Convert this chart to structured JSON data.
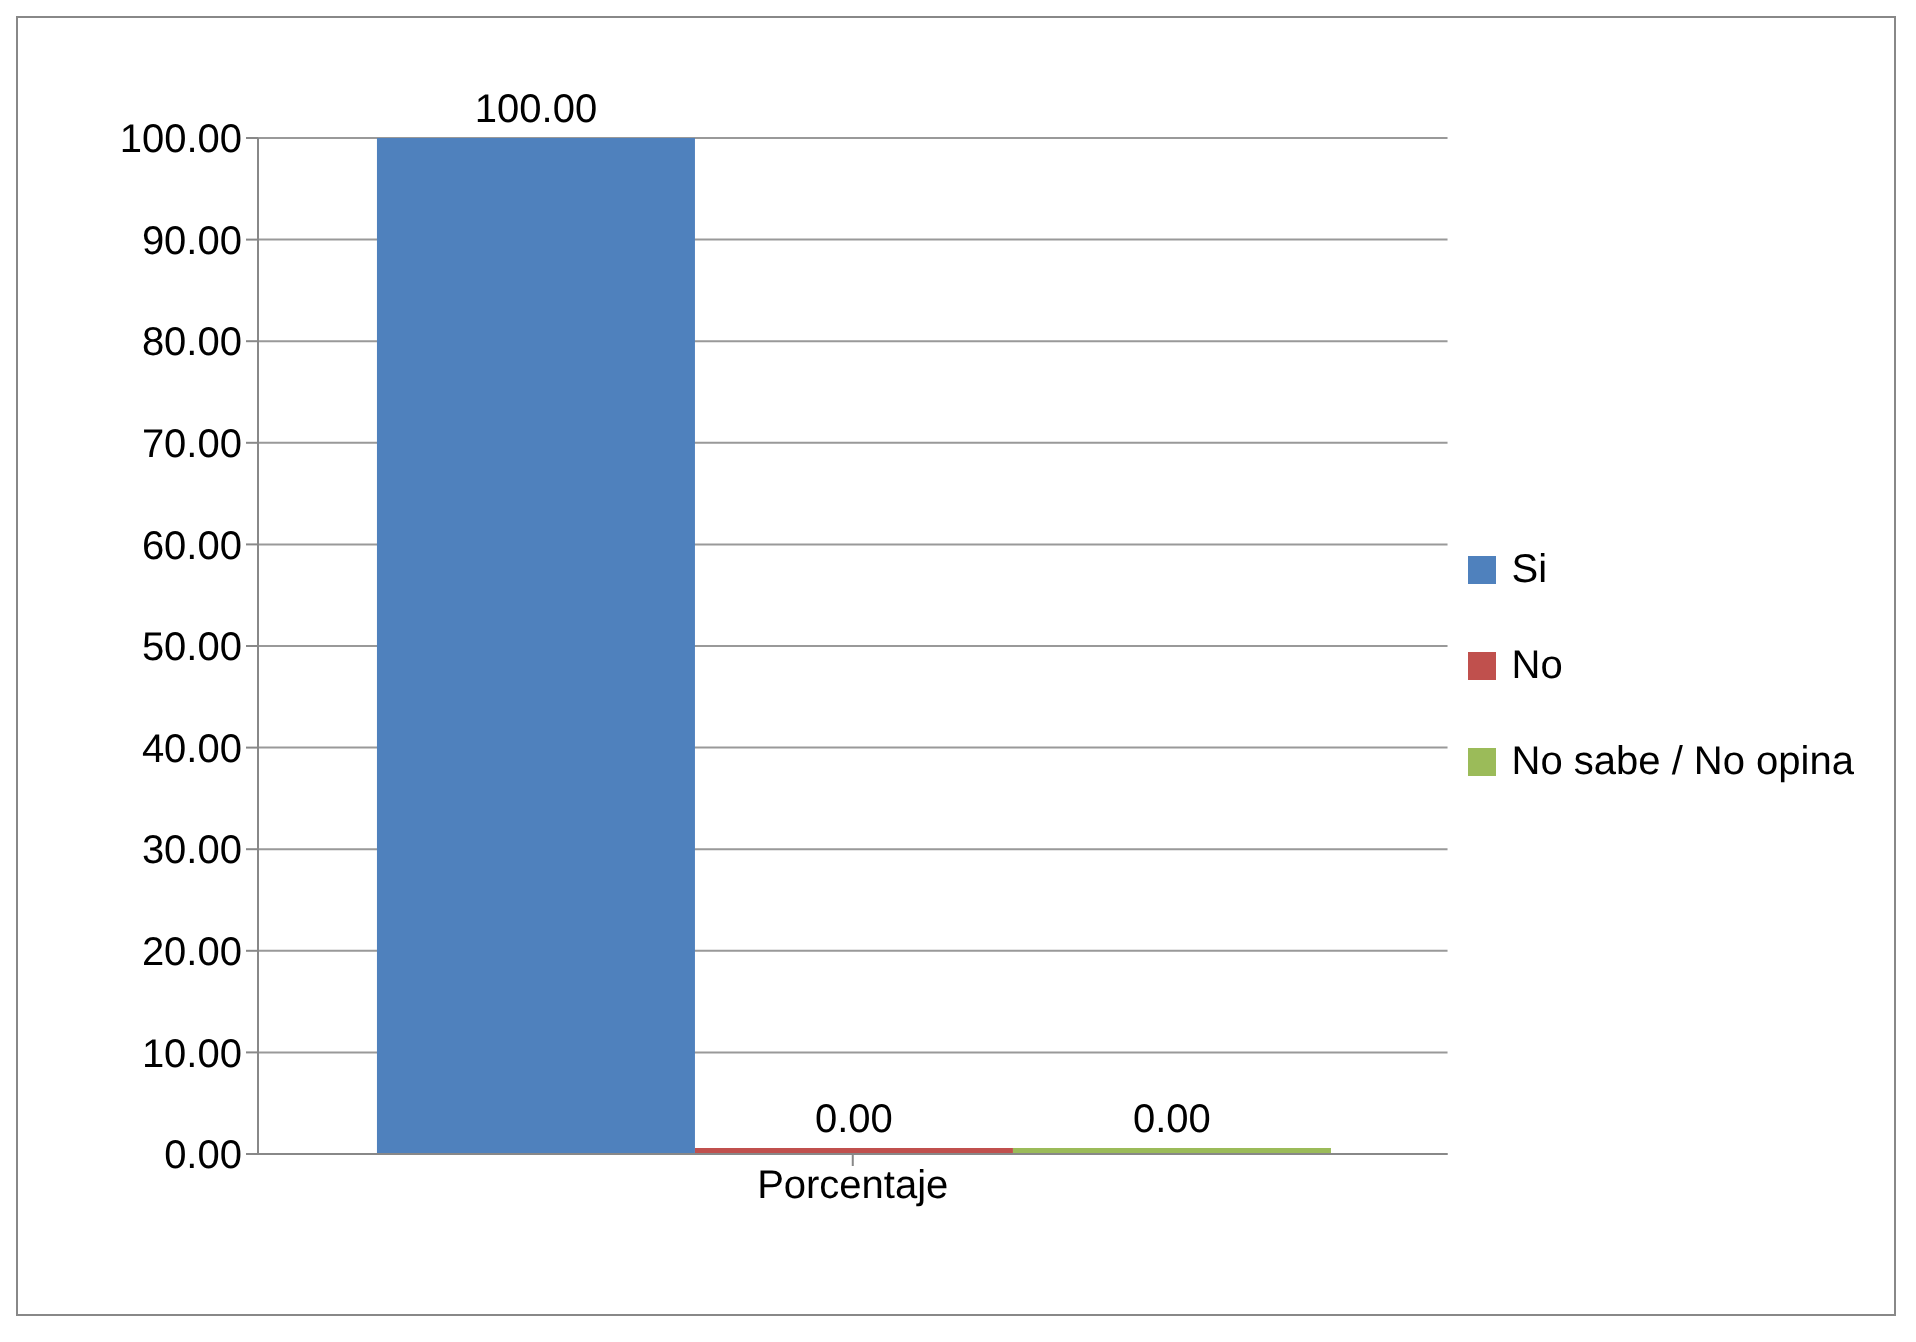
{
  "chart_data": {
    "type": "bar",
    "categories": [
      "Porcentaje"
    ],
    "series": [
      {
        "name": "Si",
        "color": "#4f81bd",
        "values": [
          100
        ],
        "value_labels": [
          "100.00"
        ]
      },
      {
        "name": "No",
        "color": "#c0504d",
        "values": [
          0
        ],
        "value_labels": [
          "0.00"
        ]
      },
      {
        "name": "No sabe / No opina",
        "color": "#9bbb59",
        "values": [
          0
        ],
        "value_labels": [
          "0.00"
        ]
      }
    ],
    "ylim": [
      0,
      100
    ],
    "yticks": [
      {
        "value": 0,
        "label": "0.00"
      },
      {
        "value": 10,
        "label": "10.00"
      },
      {
        "value": 20,
        "label": "20.00"
      },
      {
        "value": 30,
        "label": "30.00"
      },
      {
        "value": 40,
        "label": "40.00"
      },
      {
        "value": 50,
        "label": "50.00"
      },
      {
        "value": 60,
        "label": "60.00"
      },
      {
        "value": 70,
        "label": "70.00"
      },
      {
        "value": 80,
        "label": "80.00"
      },
      {
        "value": 90,
        "label": "90.00"
      },
      {
        "value": 100,
        "label": "100.00"
      }
    ],
    "grid": "y",
    "legend": "right"
  }
}
